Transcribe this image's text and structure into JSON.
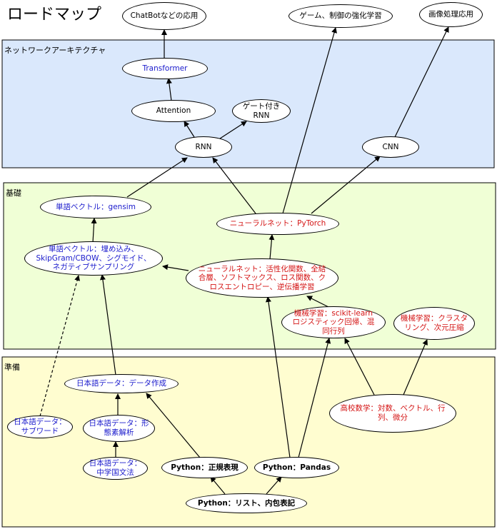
{
  "title": "ロードマップ",
  "regions": {
    "network": "ネットワークアーキテクチャ",
    "basics": "基礎",
    "prep": "準備"
  },
  "nodes": {
    "chatbot": "ChatBotなどの応用",
    "game": "ゲーム、制御の強化学習",
    "image": "画像処理応用",
    "transformer": "Transformer",
    "attention": "Attention",
    "gated_rnn": "ゲート付き\nRNN",
    "rnn": "RNN",
    "cnn": "CNN",
    "word_vec_gensim": "単語ベクトル：gensim",
    "nn_pytorch": "ニューラルネット：PyTorch",
    "word_vec_embed": "単語ベクトル：埋め込み、\nSkipGram/CBOW、シグモイド、\nネガティブサンプリング",
    "nn_theory": "ニューラルネット：活性化関数、全結\n合層、ソフトマックス、ロス関数、ク\nロスエントロピー、逆伝播学習",
    "ml_sklearn": "機械学習：scikit-learn\nロジスティック回帰、混\n同行列",
    "ml_cluster": "機械学習：クラスタ\nリング、次元圧縮",
    "jp_data_create": "日本語データ：データ作成",
    "jp_subword": "日本語データ：\nサブワード",
    "jp_morph": "日本語データ：形\n態素解析",
    "jp_grammar": "日本語データ：\n中学国文法",
    "hs_math": "高校数学：対数、ベクトル、行\n列、微分",
    "py_regex": "Python：正規表現",
    "py_pandas": "Python：Pandas",
    "py_list": "Python：リスト、内包表記"
  },
  "colors": {
    "network_region": "#dae8fc",
    "basics_region": "#f0ffd6",
    "prep_region": "#fffdd0",
    "black_text": "#000000",
    "blue_text": "#1a1acc",
    "red_text": "#d41414"
  }
}
